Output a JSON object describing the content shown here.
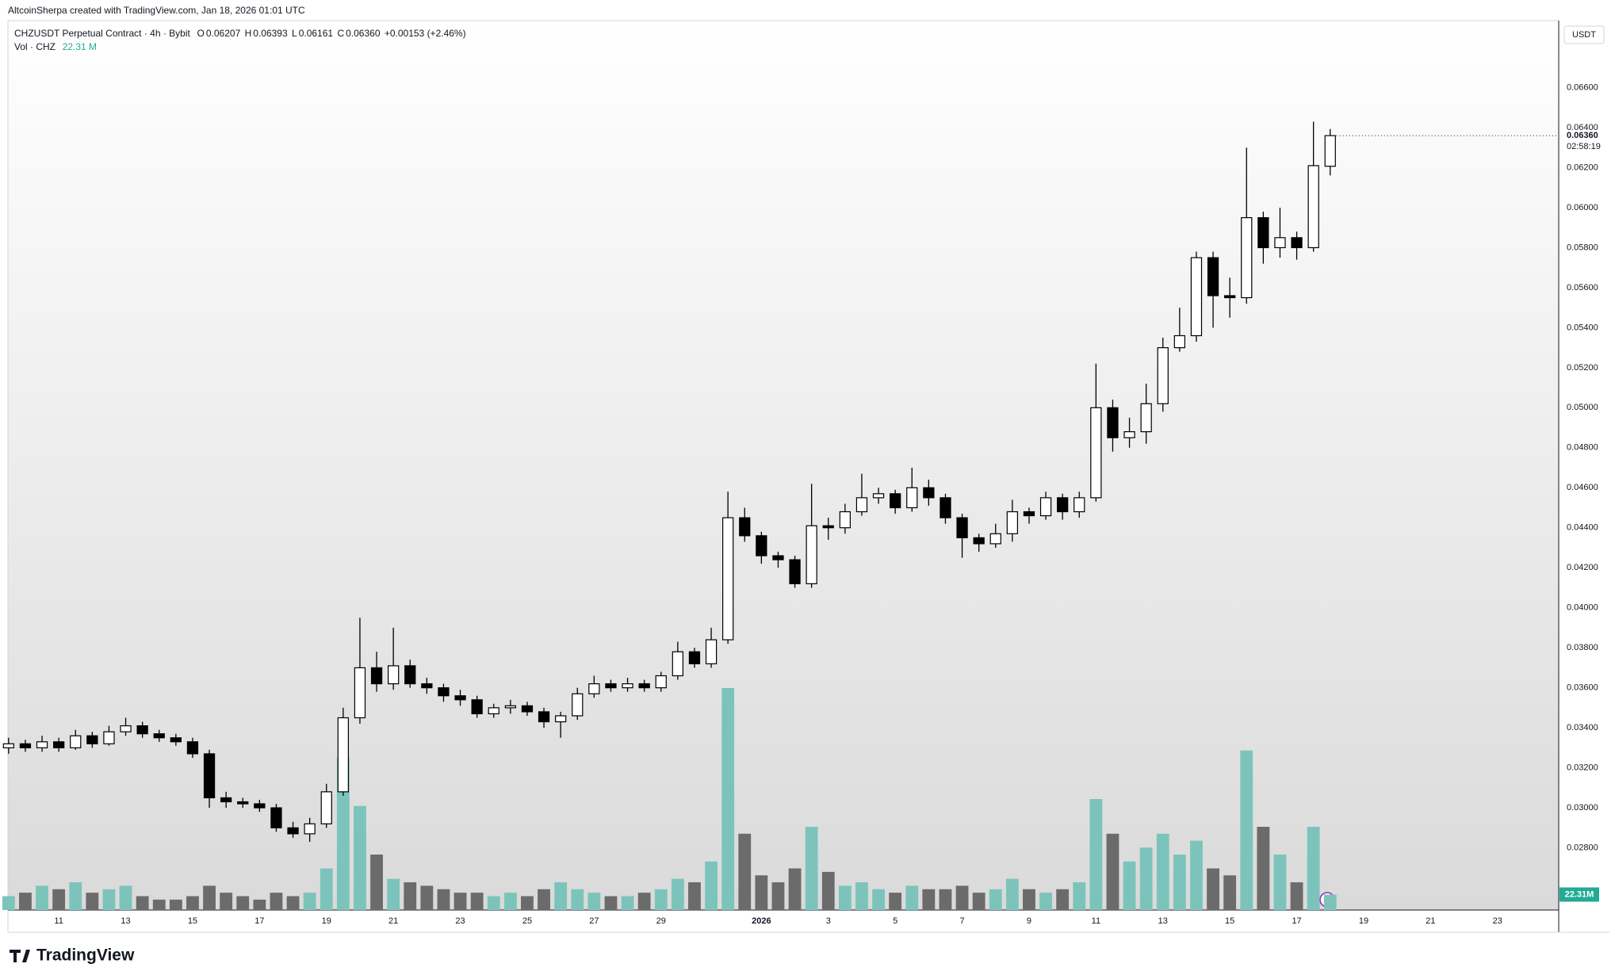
{
  "header": {
    "credit": "AltcoinSherpa created with TradingView.com, Jan 18, 2026 01:01 UTC"
  },
  "legend": {
    "symbol": "CHZUSDT Perpetual Contract · 4h · Bybit",
    "o_label": "O",
    "open": "0.06207",
    "h_label": "H",
    "high": "0.06393",
    "l_label": "L",
    "low": "0.06161",
    "c_label": "C",
    "close": "0.06360",
    "change": "+0.00153 (+2.46%)",
    "volume_name": "Vol · CHZ",
    "volume": "22.31 M"
  },
  "chart_data": {
    "type": "candlestick",
    "currency": "USDT",
    "x": [
      9.5,
      10,
      10.5,
      11,
      11.5,
      12,
      12.5,
      13,
      13.5,
      14,
      14.5,
      15,
      15.5,
      16,
      16.5,
      17,
      17.5,
      18,
      18.5,
      19,
      19.5,
      20,
      20.5,
      21,
      21.5,
      22,
      22.5,
      23,
      23.5,
      24,
      24.5,
      25,
      25.5,
      26,
      26.5,
      27,
      27.5,
      28,
      28.5,
      29,
      29.5,
      30,
      30.5,
      31,
      31.5,
      32,
      32.5,
      33,
      33.5,
      34,
      34.5,
      35,
      35.5,
      36,
      36.5,
      37,
      37.5,
      38,
      38.5,
      39,
      39.5,
      40,
      40.5,
      41,
      41.5,
      42,
      42.5,
      43,
      43.5,
      44,
      44.5,
      45,
      45.5,
      46,
      46.5,
      47,
      47.5,
      48,
      48.5,
      49
    ],
    "open": [
      0.033,
      0.0332,
      0.033,
      0.0333,
      0.033,
      0.0336,
      0.0332,
      0.0338,
      0.0341,
      0.0337,
      0.0335,
      0.0333,
      0.0327,
      0.0305,
      0.0303,
      0.0302,
      0.03,
      0.029,
      0.0287,
      0.0292,
      0.0308,
      0.0345,
      0.037,
      0.0362,
      0.0371,
      0.0362,
      0.036,
      0.0356,
      0.0354,
      0.0347,
      0.035,
      0.0351,
      0.0348,
      0.0343,
      0.0346,
      0.0357,
      0.0362,
      0.036,
      0.0362,
      0.036,
      0.0366,
      0.0378,
      0.0372,
      0.0384,
      0.0445,
      0.0436,
      0.0426,
      0.0424,
      0.0412,
      0.0441,
      0.044,
      0.0448,
      0.0455,
      0.0457,
      0.045,
      0.046,
      0.0455,
      0.0445,
      0.0435,
      0.0432,
      0.0437,
      0.0448,
      0.0446,
      0.0455,
      0.0448,
      0.0455,
      0.05,
      0.0485,
      0.0488,
      0.0502,
      0.053,
      0.0536,
      0.0575,
      0.0556,
      0.0555,
      0.0595,
      0.058,
      0.0585,
      0.058,
      0.06207
    ],
    "high": [
      0.0335,
      0.0334,
      0.0336,
      0.0335,
      0.0339,
      0.0338,
      0.0341,
      0.0345,
      0.0343,
      0.0339,
      0.0337,
      0.0335,
      0.0329,
      0.0308,
      0.0305,
      0.0304,
      0.0302,
      0.0293,
      0.0295,
      0.0312,
      0.035,
      0.0395,
      0.0378,
      0.039,
      0.0374,
      0.0365,
      0.0362,
      0.0359,
      0.0356,
      0.0352,
      0.0354,
      0.0353,
      0.035,
      0.0348,
      0.036,
      0.0366,
      0.0364,
      0.0365,
      0.0364,
      0.0368,
      0.0383,
      0.038,
      0.039,
      0.0458,
      0.045,
      0.0438,
      0.0428,
      0.0426,
      0.0462,
      0.0445,
      0.0452,
      0.0467,
      0.046,
      0.0459,
      0.047,
      0.0464,
      0.0457,
      0.0447,
      0.0437,
      0.0442,
      0.0454,
      0.045,
      0.0458,
      0.0457,
      0.0458,
      0.0522,
      0.0504,
      0.0495,
      0.0512,
      0.0535,
      0.055,
      0.0578,
      0.0578,
      0.0565,
      0.063,
      0.0598,
      0.06,
      0.0588,
      0.0643,
      0.06393
    ],
    "low": [
      0.0327,
      0.0328,
      0.0328,
      0.0328,
      0.0329,
      0.033,
      0.0331,
      0.0336,
      0.0335,
      0.0333,
      0.0331,
      0.0325,
      0.03,
      0.03,
      0.03,
      0.0298,
      0.0288,
      0.0285,
      0.0283,
      0.029,
      0.0306,
      0.0342,
      0.0358,
      0.0359,
      0.036,
      0.0357,
      0.0353,
      0.0351,
      0.0345,
      0.0345,
      0.0347,
      0.0346,
      0.034,
      0.0335,
      0.0344,
      0.0355,
      0.0358,
      0.0358,
      0.0358,
      0.0358,
      0.0364,
      0.037,
      0.037,
      0.0382,
      0.0433,
      0.0422,
      0.042,
      0.041,
      0.041,
      0.0434,
      0.0437,
      0.0446,
      0.0452,
      0.0447,
      0.0448,
      0.0451,
      0.0442,
      0.0425,
      0.0428,
      0.043,
      0.0433,
      0.0442,
      0.0444,
      0.0444,
      0.0445,
      0.0453,
      0.0478,
      0.048,
      0.0482,
      0.0498,
      0.0528,
      0.0533,
      0.054,
      0.0545,
      0.0552,
      0.0572,
      0.0575,
      0.0574,
      0.0578,
      0.06161
    ],
    "close": [
      0.0332,
      0.033,
      0.0333,
      0.033,
      0.0336,
      0.0332,
      0.0338,
      0.0341,
      0.0337,
      0.0335,
      0.0333,
      0.0327,
      0.0305,
      0.0303,
      0.0302,
      0.03,
      0.029,
      0.0287,
      0.0292,
      0.0308,
      0.0345,
      0.037,
      0.0362,
      0.0371,
      0.0362,
      0.036,
      0.0356,
      0.0354,
      0.0347,
      0.035,
      0.0351,
      0.0348,
      0.0343,
      0.0346,
      0.0357,
      0.0362,
      0.036,
      0.0362,
      0.036,
      0.0366,
      0.0378,
      0.0372,
      0.0384,
      0.0445,
      0.0436,
      0.0426,
      0.0424,
      0.0412,
      0.0441,
      0.044,
      0.0448,
      0.0455,
      0.0457,
      0.045,
      0.046,
      0.0455,
      0.0445,
      0.0435,
      0.0432,
      0.0437,
      0.0448,
      0.0446,
      0.0455,
      0.0448,
      0.0455,
      0.05,
      0.0485,
      0.0488,
      0.0502,
      0.053,
      0.0536,
      0.0575,
      0.0556,
      0.0555,
      0.0595,
      0.058,
      0.0585,
      0.058,
      0.0621,
      0.0636
    ],
    "volume": [
      20,
      25,
      35,
      30,
      40,
      25,
      30,
      35,
      20,
      15,
      15,
      20,
      35,
      25,
      20,
      15,
      25,
      20,
      25,
      60,
      220,
      150,
      80,
      45,
      40,
      35,
      30,
      25,
      25,
      20,
      25,
      20,
      30,
      40,
      30,
      25,
      20,
      20,
      25,
      30,
      45,
      40,
      70,
      320,
      110,
      50,
      40,
      60,
      120,
      55,
      35,
      40,
      30,
      25,
      35,
      30,
      30,
      35,
      25,
      30,
      45,
      30,
      25,
      30,
      40,
      160,
      110,
      70,
      90,
      110,
      80,
      100,
      60,
      50,
      230,
      120,
      80,
      40,
      120,
      22.31
    ],
    "up_color": "#ffffff",
    "down_color": "#000000",
    "wick_color": "#000000",
    "volume_up_color": "#7cc4bb",
    "volume_down_color": "#6b6b6b",
    "xlim": [
      9.48,
      55.83
    ],
    "xticks": [
      {
        "value": 11,
        "label": "11"
      },
      {
        "value": 13,
        "label": "13"
      },
      {
        "value": 15,
        "label": "15"
      },
      {
        "value": 17,
        "label": "17"
      },
      {
        "value": 19,
        "label": "19"
      },
      {
        "value": 21,
        "label": "21"
      },
      {
        "value": 23,
        "label": "23"
      },
      {
        "value": 25,
        "label": "25"
      },
      {
        "value": 27,
        "label": "27"
      },
      {
        "value": 29,
        "label": "29"
      },
      {
        "value": 32,
        "label": "2026"
      },
      {
        "value": 34,
        "label": "3"
      },
      {
        "value": 36,
        "label": "5"
      },
      {
        "value": 38,
        "label": "7"
      },
      {
        "value": 40,
        "label": "9"
      },
      {
        "value": 42,
        "label": "11"
      },
      {
        "value": 44,
        "label": "13"
      },
      {
        "value": 46,
        "label": "15"
      },
      {
        "value": 48,
        "label": "17"
      },
      {
        "value": 50,
        "label": "19"
      },
      {
        "value": 52,
        "label": "21"
      },
      {
        "value": 54,
        "label": "23"
      }
    ],
    "ylim": [
      0.02489,
      0.06935
    ],
    "yticks": [
      {
        "value": 0.028,
        "label": "0.02800"
      },
      {
        "value": 0.03,
        "label": "0.03000"
      },
      {
        "value": 0.032,
        "label": "0.03200"
      },
      {
        "value": 0.034,
        "label": "0.03400"
      },
      {
        "value": 0.036,
        "label": "0.03600"
      },
      {
        "value": 0.038,
        "label": "0.03800"
      },
      {
        "value": 0.04,
        "label": "0.04000"
      },
      {
        "value": 0.042,
        "label": "0.04200"
      },
      {
        "value": 0.044,
        "label": "0.04400"
      },
      {
        "value": 0.046,
        "label": "0.04600"
      },
      {
        "value": 0.048,
        "label": "0.04800"
      },
      {
        "value": 0.05,
        "label": "0.05000"
      },
      {
        "value": 0.052,
        "label": "0.05200"
      },
      {
        "value": 0.054,
        "label": "0.05400"
      },
      {
        "value": 0.056,
        "label": "0.05600"
      },
      {
        "value": 0.058,
        "label": "0.05800"
      },
      {
        "value": 0.06,
        "label": "0.06000"
      },
      {
        "value": 0.062,
        "label": "0.06200"
      },
      {
        "value": 0.064,
        "label": "0.06400"
      },
      {
        "value": 0.066,
        "label": "0.06600"
      }
    ],
    "grid": false,
    "last_price_label": "0.06360",
    "countdown": "02:58:19",
    "volume_axis_label": "22.31M"
  },
  "footer": {
    "logo": "TradingView"
  }
}
